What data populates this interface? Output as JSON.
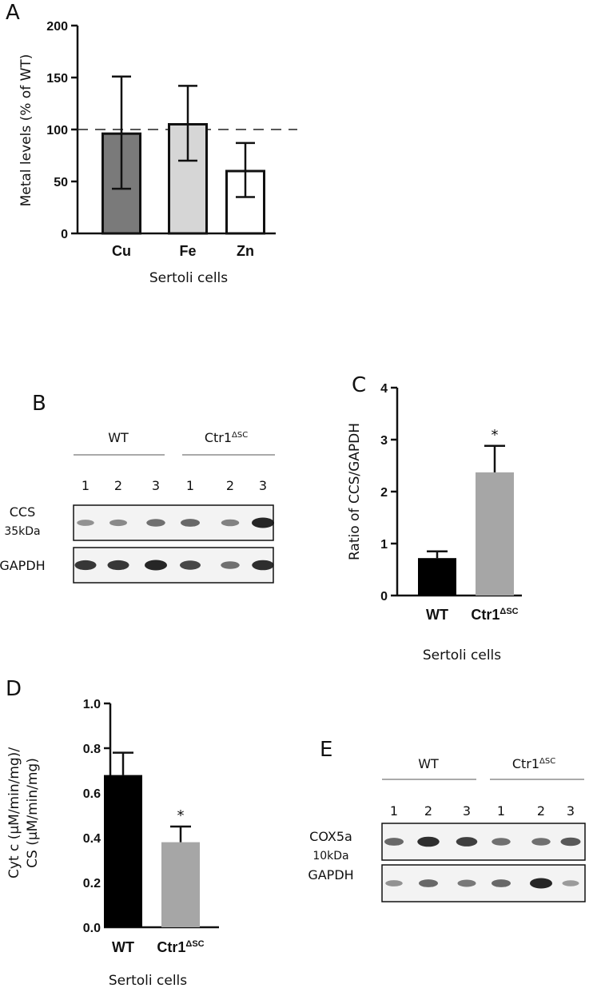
{
  "panels": {
    "a": "A",
    "b": "B",
    "c": "C",
    "d": "D",
    "e": "E"
  },
  "chart_data": [
    {
      "id": "A",
      "type": "bar",
      "categories": [
        "Cu",
        "Fe",
        "Zn"
      ],
      "values": [
        96,
        105,
        60
      ],
      "errors_upper": [
        151,
        142,
        87
      ],
      "errors_lower": [
        43,
        70,
        35
      ],
      "colors": [
        "#7a7a7a",
        "#d6d6d6",
        "#ffffff"
      ],
      "reference_line": 100,
      "ylim": [
        0,
        200
      ],
      "yticks": [
        "0",
        "50",
        "100",
        "150",
        "200"
      ],
      "ylabel": "Metal levels (% of WT)",
      "xlabel": "Sertoli cells"
    },
    {
      "id": "C",
      "type": "bar",
      "categories": [
        "WT",
        "Ctr1"
      ],
      "category_superscripts": [
        "",
        "ΔSC"
      ],
      "values": [
        0.72,
        2.37
      ],
      "errors_upper": [
        0.85,
        2.88
      ],
      "colors": [
        "#000000",
        "#a6a6a6"
      ],
      "significance": [
        "",
        "*"
      ],
      "ylim": [
        0,
        4
      ],
      "yticks": [
        "0",
        "1",
        "2",
        "3",
        "4"
      ],
      "ylabel": "Ratio of CCS/GAPDH",
      "xlabel": "Sertoli cells"
    },
    {
      "id": "D",
      "type": "bar",
      "categories": [
        "WT",
        "Ctr1"
      ],
      "category_superscripts": [
        "",
        "ΔSC"
      ],
      "values": [
        0.68,
        0.38
      ],
      "errors_upper": [
        0.78,
        0.45
      ],
      "colors": [
        "#000000",
        "#a6a6a6"
      ],
      "significance": [
        "",
        "*"
      ],
      "ylim": [
        0,
        1.0
      ],
      "yticks": [
        "0.0",
        "0.2",
        "0.4",
        "0.6",
        "0.8",
        "1.0"
      ],
      "ylabel_lines": [
        "Cyt c (μM/min/mg)/",
        "CS (μM/min/mg)"
      ],
      "xlabel": "Sertoli cells"
    }
  ],
  "blot_b": {
    "group1": "WT",
    "group2": "Ctr1",
    "group2_sup": "ΔSC",
    "lanes": [
      "1",
      "2",
      "3",
      "1",
      "2",
      "3"
    ],
    "row1_label": "CCS",
    "row1_size": "35kDa",
    "row2_label": "GAPDH",
    "row1_intensity": [
      0.35,
      0.4,
      0.55,
      0.6,
      0.45,
      1.0
    ],
    "row2_intensity": [
      0.9,
      0.9,
      1.0,
      0.8,
      0.55,
      0.95
    ]
  },
  "blot_e": {
    "group1": "WT",
    "group2": "Ctr1",
    "group2_sup": "ΔSC",
    "lanes": [
      "1",
      "2",
      "3",
      "1",
      "2",
      "3"
    ],
    "row1_label": "COX5a",
    "row1_size": "10kDa",
    "row2_label": "GAPDH",
    "row1_intensity": [
      0.6,
      0.95,
      0.85,
      0.55,
      0.55,
      0.7
    ],
    "row2_intensity": [
      0.35,
      0.6,
      0.5,
      0.6,
      1.0,
      0.3
    ]
  }
}
